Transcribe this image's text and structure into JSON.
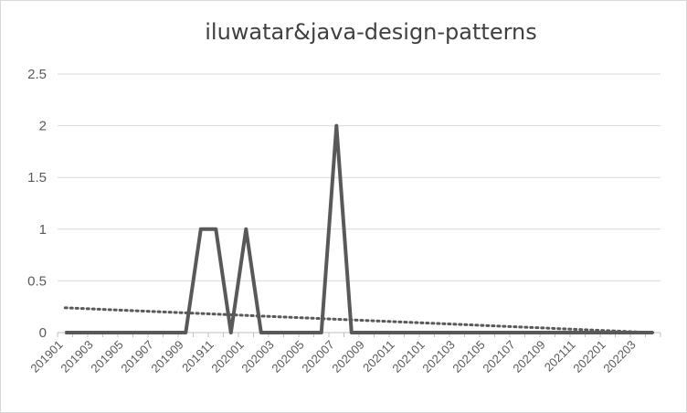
{
  "chart_data": {
    "type": "line",
    "title": "iluwatar&java-design-patterns",
    "xlabel": "",
    "ylabel": "",
    "ylim": [
      0,
      2.5
    ],
    "yticks": [
      "0",
      "0.5",
      "1",
      "1.5",
      "2",
      "2.5"
    ],
    "grid": true,
    "legend": "none",
    "categories": [
      "201901",
      "201902",
      "201903",
      "201904",
      "201905",
      "201906",
      "201907",
      "201908",
      "201909",
      "201910",
      "201911",
      "201912",
      "202001",
      "202002",
      "202003",
      "202004",
      "202005",
      "202006",
      "202007",
      "202008",
      "202009",
      "202010",
      "202011",
      "202012",
      "202101",
      "202102",
      "202103",
      "202104",
      "202105",
      "202106",
      "202107",
      "202108",
      "202109",
      "202110",
      "202111",
      "202112",
      "202201",
      "202202",
      "202203",
      "202204"
    ],
    "xtick_labels": [
      "201901",
      "201903",
      "201905",
      "201907",
      "201909",
      "201911",
      "202001",
      "202003",
      "202005",
      "202007",
      "202009",
      "202011",
      "202101",
      "202103",
      "202105",
      "202107",
      "202109",
      "202111",
      "202201",
      "202203"
    ],
    "series": [
      {
        "style": "solid",
        "color": "#595959",
        "values": [
          0,
          0,
          0,
          0,
          0,
          0,
          0,
          0,
          0,
          1,
          1,
          0,
          1,
          0,
          0,
          0,
          0,
          0,
          2,
          0,
          0,
          0,
          0,
          0,
          0,
          0,
          0,
          0,
          0,
          0,
          0,
          0,
          0,
          0,
          0,
          0,
          0,
          0,
          0,
          0
        ]
      },
      {
        "style": "dotted-trendline",
        "color": "#595959",
        "start": 0.24,
        "end": 0.0
      }
    ]
  }
}
